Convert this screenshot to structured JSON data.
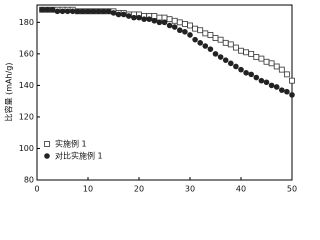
{
  "chart_data": {
    "type": "scatter",
    "y_label": "比容量 (mAh/g)",
    "x": [
      1,
      2,
      3,
      4,
      5,
      6,
      7,
      8,
      9,
      10,
      11,
      12,
      13,
      14,
      15,
      16,
      17,
      18,
      19,
      20,
      21,
      22,
      23,
      24,
      25,
      26,
      27,
      28,
      29,
      30,
      31,
      32,
      33,
      34,
      35,
      36,
      37,
      38,
      39,
      40,
      41,
      42,
      43,
      44,
      45,
      46,
      47,
      48,
      49,
      50
    ],
    "series": [
      {
        "name": "实施例 1",
        "marker": "square",
        "color": "#333333",
        "values": [
          188,
          188,
          188,
          188,
          188,
          188,
          188,
          187,
          187,
          187,
          187,
          187,
          187,
          187,
          187,
          186,
          186,
          185,
          185,
          185,
          184,
          184,
          184,
          183,
          183,
          182,
          181,
          180,
          179,
          178,
          176,
          175,
          173,
          172,
          170,
          169,
          167,
          166,
          164,
          162,
          161,
          160,
          158,
          157,
          155,
          154,
          152,
          150,
          147,
          143
        ]
      },
      {
        "name": "对比实施例 1",
        "marker": "circle",
        "color": "#222222",
        "values": [
          188,
          188,
          188,
          187,
          187,
          187,
          187,
          187,
          187,
          187,
          187,
          187,
          187,
          187,
          186,
          185,
          185,
          184,
          183,
          183,
          182,
          182,
          181,
          180,
          180,
          178,
          177,
          175,
          174,
          172,
          169,
          167,
          165,
          163,
          160,
          158,
          156,
          154,
          152,
          150,
          148,
          147,
          145,
          143,
          142,
          140,
          139,
          137,
          136,
          134
        ]
      }
    ],
    "xlim": [
      0,
      50
    ],
    "xticks": [
      0,
      10,
      20,
      30,
      40,
      50
    ],
    "ylim": [
      80,
      191
    ],
    "yticks": [
      80,
      100,
      120,
      140,
      160,
      180
    ],
    "legend": "lower-left"
  }
}
